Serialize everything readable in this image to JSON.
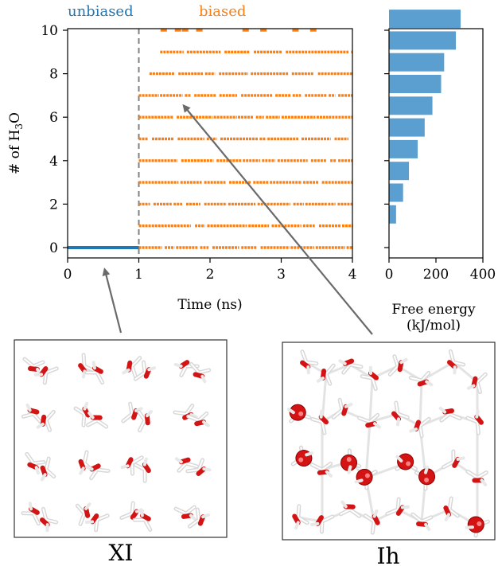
{
  "chart_data": [
    {
      "type": "scatter",
      "xlabel": "Time (ns)",
      "ylabel_main": "# of H",
      "ylabel_sub": "3",
      "ylabel_tail": "O",
      "xlim": [
        0,
        4
      ],
      "ylim": [
        0,
        10
      ],
      "xticks": [
        "0",
        "1",
        "2",
        "3",
        "4"
      ],
      "yticks": [
        "0",
        "2",
        "4",
        "6",
        "8",
        "10"
      ],
      "divider_x": 1,
      "regions": [
        {
          "name": "unbiased",
          "color": "#1f77b4"
        },
        {
          "name": "biased",
          "color": "#ff7f0e"
        }
      ],
      "series": [
        {
          "name": "unbiased",
          "color": "#1f77b4",
          "segments": [
            [
              0,
              1,
              0
            ]
          ]
        },
        {
          "name": "biased",
          "color": "#ff7f0e",
          "segments": [
            [
              1.0,
              4.0,
              0
            ],
            [
              1.0,
              4.0,
              1
            ],
            [
              1.0,
              4.0,
              2
            ],
            [
              1.0,
              4.0,
              3
            ],
            [
              1.0,
              4.0,
              4
            ],
            [
              1.0,
              4.0,
              5
            ],
            [
              1.0,
              4.0,
              6
            ],
            [
              1.0,
              4.0,
              7
            ],
            [
              1.15,
              4.0,
              8
            ],
            [
              1.3,
              4.0,
              9
            ]
          ],
          "sparse": [
            [
              1.35,
              10
            ],
            [
              1.55,
              10
            ],
            [
              1.65,
              10
            ],
            [
              1.85,
              10
            ],
            [
              2.5,
              10
            ],
            [
              2.75,
              10
            ],
            [
              3.2,
              10
            ],
            [
              3.45,
              10
            ]
          ]
        }
      ]
    },
    {
      "type": "bar",
      "orientation": "horizontal",
      "xlabel_line1": "Free energy",
      "xlabel_line2": "(kJ/mol)",
      "xlim": [
        0,
        400
      ],
      "xticks": [
        "0",
        "200",
        "400"
      ],
      "color": "#5a9fcf",
      "categories": [
        1,
        2,
        3,
        4,
        5,
        6,
        7,
        8,
        9,
        10
      ],
      "values": [
        30,
        60,
        85,
        122,
        152,
        185,
        222,
        235,
        285,
        305
      ]
    }
  ],
  "panels": [
    {
      "label": "XI"
    },
    {
      "label": "Ih"
    }
  ]
}
